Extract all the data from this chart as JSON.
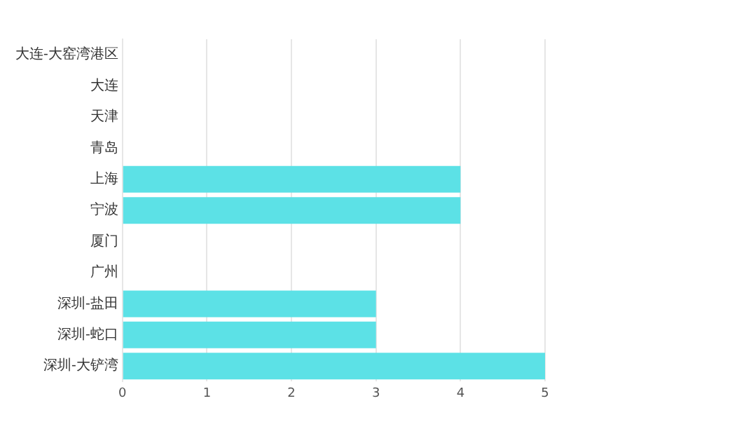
{
  "chart_data": {
    "type": "bar",
    "orientation": "horizontal",
    "categories": [
      "大连-大窑湾港区",
      "大连",
      "天津",
      "青岛",
      "上海",
      "宁波",
      "厦门",
      "广州",
      "深圳-盐田",
      "深圳-蛇口",
      "深圳-大铲湾"
    ],
    "values": [
      0,
      0,
      0,
      0,
      4,
      4,
      0,
      0,
      3,
      3,
      5
    ],
    "color": "#5ce1e6",
    "xlim": [
      0,
      5
    ],
    "xticks": [
      0,
      1,
      2,
      3,
      4,
      5
    ],
    "grid": "x",
    "legend": false
  }
}
